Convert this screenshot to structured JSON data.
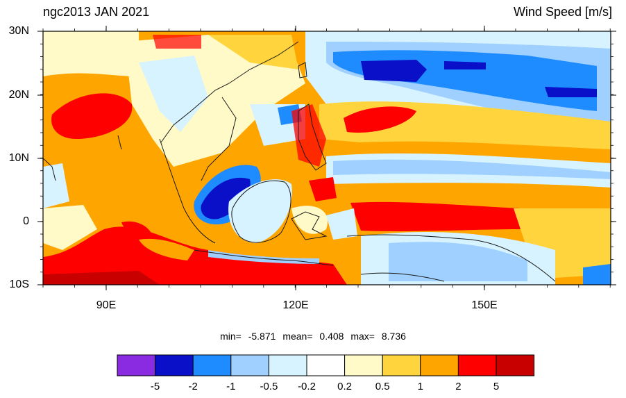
{
  "header": {
    "title_left": "ngc2013 JAN 2021",
    "title_right": "Wind Speed [m/s]"
  },
  "axes": {
    "lat_labels": [
      "30N",
      "20N",
      "10N",
      "0",
      "10S"
    ],
    "lon_labels": [
      "90E",
      "120E",
      "150E"
    ]
  },
  "stats": {
    "min_label": "min=",
    "min_value": "-5.871",
    "mean_label": "mean=",
    "mean_value": "0.408",
    "max_label": "max=",
    "max_value": "8.736"
  },
  "colorbar": {
    "labels": [
      "-5",
      "-2",
      "-1",
      "-0.5",
      "-0.2",
      "0.2",
      "0.5",
      "1",
      "2",
      "5"
    ],
    "colors": [
      "#8a2be2",
      "#0a10c8",
      "#1e8cff",
      "#a0d0ff",
      "#d6f3ff",
      "#ffffff",
      "#fffac8",
      "#ffd43c",
      "#ffa500",
      "#ff0000",
      "#c80000"
    ]
  }
}
